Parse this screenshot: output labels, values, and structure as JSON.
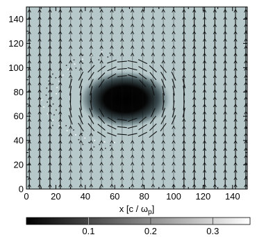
{
  "chart_data": {
    "type": "heatmap",
    "title": "",
    "xlabel": "x [c / ωp]",
    "xlabel_parts": {
      "prefix": "x [c / ω",
      "subscript": "p",
      "suffix": "]"
    },
    "ylabel": "",
    "xlim": [
      0,
      150
    ],
    "ylim": [
      0,
      150
    ],
    "x_ticks": [
      0,
      10,
      20,
      30,
      40,
      50,
      60,
      70,
      80,
      90,
      100,
      110,
      120,
      130,
      140
    ],
    "x_tick_labels": [
      "0",
      "20",
      "40",
      "60",
      "80",
      "100",
      "120",
      "140"
    ],
    "x_tick_label_values": [
      0,
      20,
      40,
      60,
      80,
      100,
      120,
      140
    ],
    "y_ticks": [
      0,
      10,
      20,
      30,
      40,
      50,
      60,
      70,
      80,
      90,
      100,
      110,
      120,
      130,
      140
    ],
    "y_tick_labels": [
      "0",
      "20",
      "40",
      "60",
      "80",
      "100",
      "120",
      "140"
    ],
    "y_tick_label_values": [
      0,
      20,
      40,
      60,
      80,
      100,
      120,
      140
    ],
    "background_value": 0.22,
    "density_hole": {
      "center_x": 67,
      "center_y": 74,
      "radius_x": 20,
      "radius_y": 15,
      "min_value": 0.0
    },
    "vector_field": {
      "description_label": "velocity arrows",
      "columns_x": [
        2,
        9,
        16,
        23,
        30,
        37,
        44,
        51,
        58,
        65,
        72,
        79,
        86,
        93,
        100,
        107,
        114,
        121,
        128,
        135,
        142,
        149
      ],
      "rows_y": [
        3,
        9,
        15,
        21,
        27,
        33,
        39,
        45,
        51,
        57,
        63,
        69,
        75,
        81,
        87,
        93,
        99,
        105,
        111,
        117,
        123,
        129,
        135,
        141,
        147
      ]
    },
    "colorbar": {
      "min": 0.0,
      "max": 0.36,
      "ticks": [
        0.1,
        0.2,
        0.3
      ],
      "tick_labels": [
        "0.1",
        "0.2",
        "0.3"
      ],
      "colors": [
        "#000000",
        "#ffffff"
      ]
    }
  }
}
